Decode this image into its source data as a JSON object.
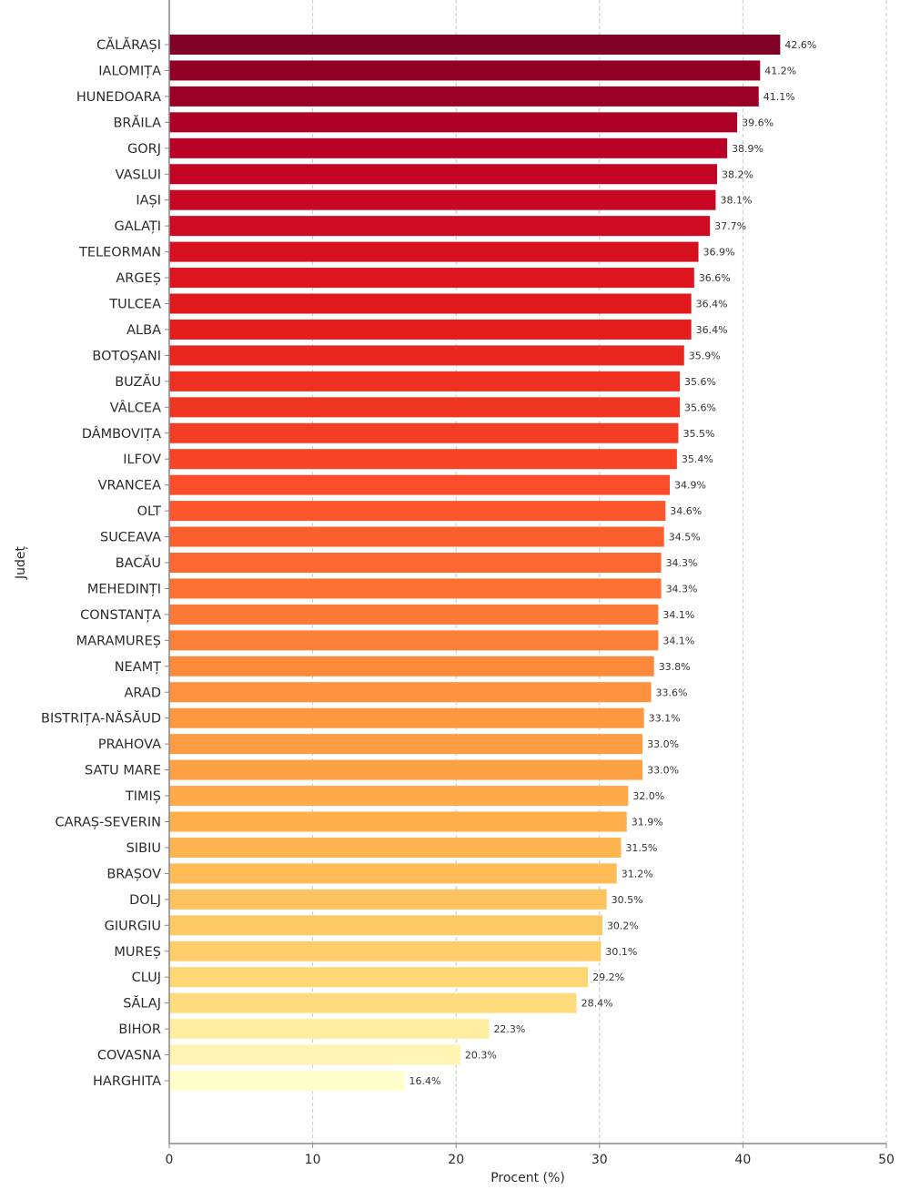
{
  "chart_data": {
    "type": "bar",
    "orientation": "horizontal",
    "title": "",
    "xlabel": "Procent (%)",
    "ylabel": "Județ",
    "xlim": [
      0,
      50
    ],
    "xticks": [
      0,
      10,
      20,
      30,
      40,
      50
    ],
    "grid": "vertical dashed",
    "value_suffix": "%",
    "categories": [
      "CĂLĂRAȘI",
      "IALOMIȚA",
      "HUNEDOARA",
      "BRĂILA",
      "GORJ",
      "VASLUI",
      "IAȘI",
      "GALAȚI",
      "TELEORMAN",
      "ARGEȘ",
      "TULCEA",
      "ALBA",
      "BOTOȘANI",
      "BUZĂU",
      "VÂLCEA",
      "DÂMBOVIȚA",
      "ILFOV",
      "VRANCEA",
      "OLT",
      "SUCEAVA",
      "BACĂU",
      "MEHEDINȚI",
      "CONSTANȚA",
      "MARAMUREȘ",
      "NEAMȚ",
      "ARAD",
      "BISTRIȚA-NĂSĂUD",
      "PRAHOVA",
      "SATU MARE",
      "TIMIȘ",
      "CARAȘ-SEVERIN",
      "SIBIU",
      "BRAȘOV",
      "DOLJ",
      "GIURGIU",
      "MUREȘ",
      "CLUJ",
      "SĂLAJ",
      "BIHOR",
      "COVASNA",
      "HARGHITA"
    ],
    "values": [
      42.6,
      41.2,
      41.1,
      39.6,
      38.9,
      38.2,
      38.1,
      37.7,
      36.9,
      36.6,
      36.4,
      36.4,
      35.9,
      35.6,
      35.6,
      35.5,
      35.4,
      34.9,
      34.6,
      34.5,
      34.3,
      34.3,
      34.1,
      34.1,
      33.8,
      33.6,
      33.1,
      33.0,
      33.0,
      32.0,
      31.9,
      31.5,
      31.2,
      30.5,
      30.2,
      30.1,
      29.2,
      28.4,
      22.3,
      20.3,
      16.4
    ],
    "value_labels": [
      "42.6%",
      "41.2%",
      "41.1%",
      "39.6%",
      "38.9%",
      "38.2%",
      "38.1%",
      "37.7%",
      "36.9%",
      "36.6%",
      "36.4%",
      "36.4%",
      "35.9%",
      "35.6%",
      "35.6%",
      "35.5%",
      "35.4%",
      "34.9%",
      "34.6%",
      "34.5%",
      "34.3%",
      "34.3%",
      "34.1%",
      "34.1%",
      "33.8%",
      "33.6%",
      "33.1%",
      "33.0%",
      "33.0%",
      "32.0%",
      "31.9%",
      "31.5%",
      "31.2%",
      "30.5%",
      "30.2%",
      "30.1%",
      "29.2%",
      "28.4%",
      "22.3%",
      "20.3%",
      "16.4%"
    ],
    "colormap": "YlOrRd (dark red = highest, pale yellow = lowest)",
    "colormap_stops": [
      "#800026",
      "#bd0026",
      "#e31a1c",
      "#fc4e2a",
      "#fd8d3c",
      "#feb24c",
      "#fed976",
      "#ffeda0",
      "#ffffcc"
    ]
  }
}
